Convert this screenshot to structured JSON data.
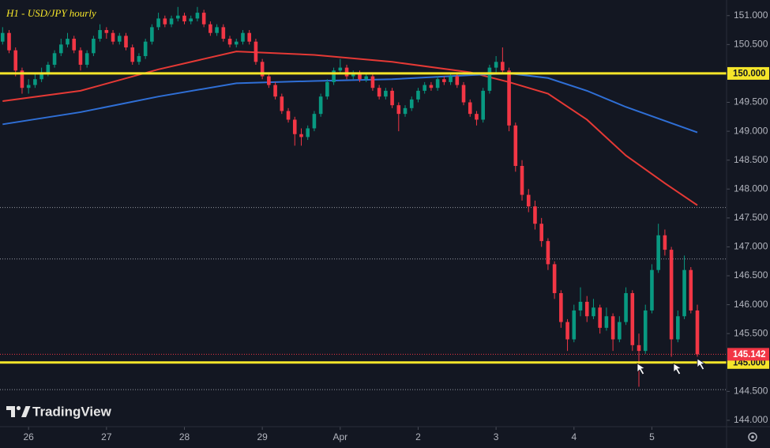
{
  "chart_data": {
    "type": "candlestick",
    "title": "H1 - USD/JPY hourly",
    "logo": "TradingView",
    "up_color": "#089981",
    "down_color": "#f23645",
    "x": [
      0,
      1,
      2,
      3,
      4,
      5,
      6,
      7,
      8,
      9,
      10,
      11,
      12,
      13,
      14,
      15,
      16,
      17,
      18,
      19,
      20,
      21,
      22,
      23,
      24,
      25,
      26,
      27,
      28,
      29,
      30,
      31,
      32,
      33,
      34,
      35,
      36,
      37,
      38,
      39,
      40,
      41,
      42,
      43,
      44,
      45,
      46,
      47,
      48,
      49,
      50,
      51,
      52,
      53,
      54,
      55,
      56,
      57,
      58,
      59,
      60,
      61,
      62,
      63,
      64,
      65,
      66,
      67,
      68,
      69,
      70,
      71,
      72,
      73,
      74,
      75,
      76,
      77,
      78,
      79,
      80,
      81,
      82,
      83,
      84,
      85,
      86,
      87,
      88,
      89,
      90,
      91,
      92,
      93,
      94,
      95,
      96,
      97,
      98,
      99,
      100,
      101,
      102,
      103,
      104,
      105,
      106,
      107
    ],
    "open": [
      150.55,
      150.7,
      150.4,
      150.05,
      149.75,
      149.8,
      149.9,
      150.0,
      150.15,
      150.35,
      150.5,
      150.6,
      150.4,
      150.15,
      150.35,
      150.6,
      150.75,
      150.7,
      150.55,
      150.65,
      150.45,
      150.2,
      150.3,
      150.55,
      150.8,
      150.95,
      150.85,
      150.95,
      151.0,
      150.9,
      150.95,
      151.05,
      150.85,
      150.7,
      150.8,
      150.6,
      150.5,
      150.55,
      150.7,
      150.55,
      150.2,
      149.95,
      149.8,
      149.6,
      149.35,
      149.2,
      148.95,
      148.9,
      149.05,
      149.3,
      149.6,
      149.85,
      150.05,
      150.1,
      149.95,
      150.0,
      149.9,
      149.95,
      149.75,
      149.6,
      149.7,
      149.45,
      149.3,
      149.4,
      149.55,
      149.7,
      149.8,
      149.75,
      149.9,
      149.85,
      149.95,
      149.8,
      149.5,
      149.3,
      149.2,
      149.7,
      150.1,
      150.2,
      150.05,
      149.1,
      148.4,
      147.9,
      147.7,
      147.4,
      147.1,
      146.7,
      146.2,
      145.7,
      145.4,
      145.9,
      146.05,
      145.8,
      145.95,
      145.6,
      145.8,
      145.4,
      145.7,
      146.2,
      145.3,
      145.2,
      145.9,
      146.6,
      147.2,
      146.95,
      145.4,
      145.8,
      146.6,
      145.9
    ],
    "high": [
      150.8,
      150.75,
      150.45,
      150.1,
      149.9,
      150.0,
      150.1,
      150.2,
      150.4,
      150.6,
      150.7,
      150.65,
      150.45,
      150.4,
      150.65,
      150.85,
      150.8,
      150.75,
      150.7,
      150.7,
      150.5,
      150.35,
      150.6,
      150.85,
      151.05,
      151.0,
      151.0,
      151.15,
      151.05,
      151.0,
      151.15,
      151.1,
      150.9,
      150.85,
      150.85,
      150.65,
      150.6,
      150.75,
      150.75,
      150.6,
      150.25,
      150.0,
      149.85,
      149.65,
      149.4,
      149.25,
      149.05,
      149.1,
      149.35,
      149.65,
      149.9,
      150.1,
      150.25,
      150.15,
      150.05,
      150.05,
      150.0,
      150.0,
      149.8,
      149.75,
      149.75,
      149.5,
      149.45,
      149.6,
      149.75,
      149.85,
      149.85,
      149.95,
      149.95,
      150.0,
      150.0,
      149.85,
      149.55,
      149.35,
      149.75,
      150.15,
      150.3,
      150.45,
      150.1,
      149.15,
      148.5,
      148.0,
      147.8,
      147.5,
      147.15,
      146.75,
      146.25,
      145.75,
      146.0,
      146.3,
      146.15,
      146.1,
      146.0,
      145.95,
      145.85,
      145.8,
      146.3,
      146.25,
      145.5,
      146.0,
      146.7,
      147.4,
      147.3,
      147.0,
      145.9,
      146.85,
      146.65,
      146.0
    ],
    "low": [
      150.5,
      150.35,
      149.95,
      149.65,
      149.65,
      149.75,
      149.85,
      149.95,
      150.1,
      150.3,
      150.45,
      150.35,
      150.05,
      150.1,
      150.3,
      150.55,
      150.6,
      150.5,
      150.5,
      150.4,
      150.15,
      150.15,
      150.25,
      150.5,
      150.75,
      150.8,
      150.8,
      150.9,
      150.85,
      150.85,
      150.9,
      150.8,
      150.65,
      150.65,
      150.55,
      150.45,
      150.45,
      150.5,
      150.5,
      150.15,
      149.9,
      149.75,
      149.55,
      149.3,
      149.15,
      148.75,
      148.75,
      148.85,
      149.0,
      149.25,
      149.55,
      149.8,
      150.0,
      149.9,
      149.9,
      149.85,
      149.85,
      149.7,
      149.55,
      149.55,
      149.4,
      149.0,
      149.25,
      149.35,
      149.5,
      149.65,
      149.7,
      149.7,
      149.8,
      149.8,
      149.75,
      149.45,
      149.25,
      149.1,
      149.15,
      149.65,
      150.0,
      150.0,
      149.0,
      148.3,
      147.8,
      147.6,
      147.3,
      147.0,
      146.6,
      146.1,
      145.6,
      145.2,
      145.35,
      145.8,
      145.7,
      145.75,
      145.5,
      145.55,
      145.2,
      145.35,
      145.65,
      145.2,
      144.58,
      145.15,
      145.85,
      146.55,
      146.85,
      145.1,
      145.35,
      145.75,
      145.85,
      145.1
    ],
    "close": [
      150.7,
      150.4,
      150.05,
      149.75,
      149.8,
      149.9,
      150.0,
      150.15,
      150.35,
      150.5,
      150.6,
      150.4,
      150.15,
      150.35,
      150.6,
      150.75,
      150.7,
      150.55,
      150.65,
      150.45,
      150.2,
      150.3,
      150.55,
      150.8,
      150.95,
      150.85,
      150.95,
      151.0,
      150.9,
      150.95,
      151.05,
      150.85,
      150.7,
      150.8,
      150.6,
      150.5,
      150.55,
      150.7,
      150.55,
      150.2,
      149.95,
      149.8,
      149.6,
      149.35,
      149.2,
      148.95,
      148.9,
      149.05,
      149.3,
      149.6,
      149.85,
      150.05,
      150.1,
      149.95,
      150.0,
      149.9,
      149.95,
      149.75,
      149.6,
      149.7,
      149.45,
      149.3,
      149.4,
      149.55,
      149.7,
      149.8,
      149.75,
      149.9,
      149.85,
      149.95,
      149.8,
      149.5,
      149.3,
      149.2,
      149.7,
      150.1,
      150.2,
      150.05,
      149.1,
      148.4,
      147.9,
      147.7,
      147.4,
      147.1,
      146.7,
      146.2,
      145.7,
      145.4,
      145.9,
      146.05,
      145.8,
      145.95,
      145.6,
      145.8,
      145.4,
      145.7,
      146.2,
      145.3,
      145.2,
      145.9,
      146.6,
      147.2,
      146.95,
      145.4,
      145.8,
      146.6,
      145.9,
      145.142
    ],
    "last_price_label": "145.142",
    "moving_averages": [
      {
        "color": "#e53935",
        "x": [
          0,
          12,
          24,
          36,
          48,
          60,
          72,
          78,
          84,
          90,
          96,
          102,
          107
        ],
        "values": [
          149.52,
          149.7,
          150.07,
          150.38,
          150.32,
          150.2,
          150.02,
          149.85,
          149.65,
          149.2,
          148.58,
          148.1,
          147.72
        ]
      },
      {
        "color": "#2f6fd6",
        "x": [
          0,
          12,
          24,
          36,
          48,
          60,
          72,
          78,
          84,
          90,
          96,
          102,
          107
        ],
        "values": [
          149.12,
          149.33,
          149.6,
          149.83,
          149.87,
          149.9,
          149.97,
          150.0,
          149.92,
          149.7,
          149.42,
          149.18,
          148.98
        ]
      }
    ],
    "levels": [
      {
        "value": 150,
        "label": "150.000",
        "color": "#f5e52a"
      },
      {
        "value": 145,
        "label": "145.000",
        "color": "#f5e52a"
      }
    ],
    "dotted_levels": [
      147.68,
      146.79,
      144.53
    ],
    "xlim": [
      -0.4,
      111.5
    ],
    "ylim": [
      143.89,
      151.27
    ],
    "xticks": [
      {
        "value": 4,
        "label": "26"
      },
      {
        "value": 16,
        "label": "27"
      },
      {
        "value": 28,
        "label": "28"
      },
      {
        "value": 40,
        "label": "29"
      },
      {
        "value": 52,
        "label": "Apr"
      },
      {
        "value": 64,
        "label": "2"
      },
      {
        "value": 76,
        "label": "3"
      },
      {
        "value": 88,
        "label": "4"
      },
      {
        "value": 100,
        "label": "5"
      }
    ],
    "yticks": [
      {
        "value": 144,
        "label": "144.000"
      },
      {
        "value": 144.5,
        "label": "144.500"
      },
      {
        "value": 145,
        "label": "145.000"
      },
      {
        "value": 145.5,
        "label": "145.500"
      },
      {
        "value": 146,
        "label": "146.000"
      },
      {
        "value": 146.5,
        "label": "146.500"
      },
      {
        "value": 147,
        "label": "147.000"
      },
      {
        "value": 147.5,
        "label": "147.500"
      },
      {
        "value": 148,
        "label": "148.000"
      },
      {
        "value": 148.5,
        "label": "148.500"
      },
      {
        "value": 149,
        "label": "149.000"
      },
      {
        "value": 149.5,
        "label": "149.500"
      },
      {
        "value": 150,
        "label": "150.000"
      },
      {
        "value": 150.5,
        "label": "150.500"
      },
      {
        "value": 151,
        "label": "151.000"
      }
    ]
  }
}
